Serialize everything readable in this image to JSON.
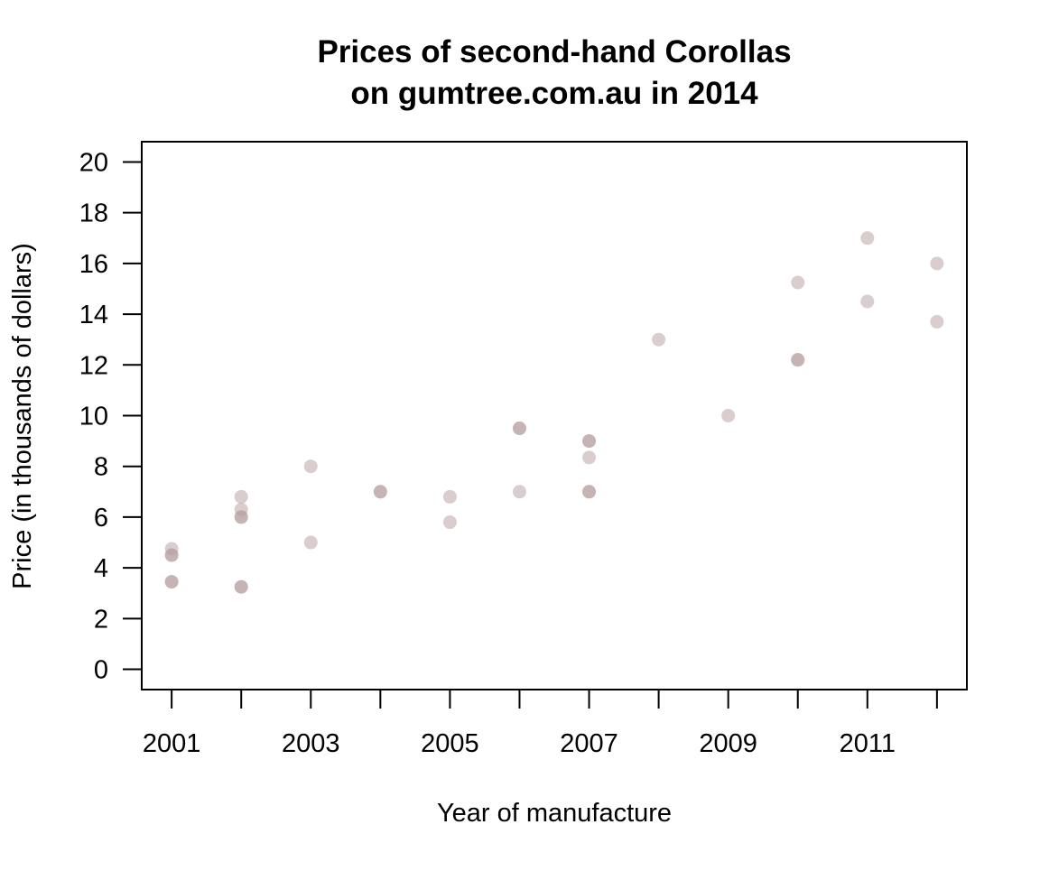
{
  "chart_data": {
    "type": "scatter",
    "title": [
      "Prices of second-hand Corollas",
      "on gumtree.com.au in 2014"
    ],
    "xlabel": "Year of manufacture",
    "ylabel": "Price (in thousands of dollars)",
    "xlim": [
      2000.57,
      2012.43
    ],
    "ylim": [
      -0.8,
      20.8
    ],
    "x_ticks": [
      2001,
      2002,
      2003,
      2004,
      2005,
      2006,
      2007,
      2008,
      2009,
      2010,
      2011,
      2012
    ],
    "x_tick_labels": [
      "2001",
      "",
      "2003",
      "",
      "2005",
      "",
      "2007",
      "",
      "2009",
      "",
      "2011",
      ""
    ],
    "y_ticks": [
      0,
      2,
      4,
      6,
      8,
      10,
      12,
      14,
      16,
      18,
      20
    ],
    "y_tick_labels": [
      "0",
      "2",
      "4",
      "6",
      "8",
      "10",
      "12",
      "14",
      "16",
      "18",
      "20"
    ],
    "grid": false,
    "legend": "none",
    "point_color": "#b49c9c",
    "point_opacity": 0.5,
    "points": [
      {
        "x": 2001,
        "y": 4.5
      },
      {
        "x": 2001,
        "y": 4.5
      },
      {
        "x": 2001,
        "y": 4.75
      },
      {
        "x": 2001,
        "y": 3.45
      },
      {
        "x": 2001,
        "y": 3.45
      },
      {
        "x": 2002,
        "y": 6.8
      },
      {
        "x": 2002,
        "y": 6.3
      },
      {
        "x": 2002,
        "y": 6.0
      },
      {
        "x": 2002,
        "y": 6.0
      },
      {
        "x": 2002,
        "y": 3.25
      },
      {
        "x": 2002,
        "y": 3.25
      },
      {
        "x": 2003,
        "y": 8.0
      },
      {
        "x": 2003,
        "y": 5.0
      },
      {
        "x": 2004,
        "y": 7.0
      },
      {
        "x": 2004,
        "y": 7.0
      },
      {
        "x": 2005,
        "y": 6.8
      },
      {
        "x": 2005,
        "y": 5.8
      },
      {
        "x": 2006,
        "y": 9.5
      },
      {
        "x": 2006,
        "y": 9.5
      },
      {
        "x": 2006,
        "y": 7.0
      },
      {
        "x": 2007,
        "y": 9.0
      },
      {
        "x": 2007,
        "y": 9.0
      },
      {
        "x": 2007,
        "y": 8.35
      },
      {
        "x": 2007,
        "y": 7.0
      },
      {
        "x": 2007,
        "y": 7.0
      },
      {
        "x": 2008,
        "y": 13.0
      },
      {
        "x": 2009,
        "y": 10.0
      },
      {
        "x": 2010,
        "y": 15.25
      },
      {
        "x": 2010,
        "y": 12.2
      },
      {
        "x": 2010,
        "y": 12.2
      },
      {
        "x": 2011,
        "y": 17.0
      },
      {
        "x": 2011,
        "y": 14.5
      },
      {
        "x": 2012,
        "y": 16.0
      },
      {
        "x": 2012,
        "y": 13.7
      }
    ]
  }
}
